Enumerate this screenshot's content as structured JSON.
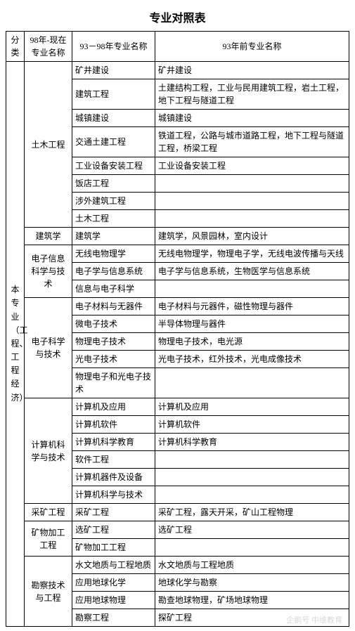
{
  "title": "专业对照表",
  "headers": {
    "category": "分类",
    "now": "98年-现在专业名称",
    "mid": "93－98年专业名称",
    "old": "93年前专业名称"
  },
  "category": "本专业（工程、工程经济）",
  "groups": [
    {
      "now": "土木工程",
      "rows": [
        {
          "mid": "矿井建设",
          "old": "矿井建设"
        },
        {
          "mid": "建筑工程",
          "old": "土建结构工程，工业与民用建筑工程，岩土工程，地下工程与隧道工程"
        },
        {
          "mid": "城镇建设",
          "old": "城镇建设"
        },
        {
          "mid": "交通土建工程",
          "old": "铁道工程，公路与城市道路工程，地下工程与隧道工程，桥梁工程"
        },
        {
          "mid": "工业设备安装工程",
          "old": "工业设备安装工程"
        },
        {
          "mid": "饭店工程",
          "old": ""
        },
        {
          "mid": "涉外建筑工程",
          "old": ""
        },
        {
          "mid": "土木工程",
          "old": ""
        }
      ]
    },
    {
      "now": "建筑学",
      "rows": [
        {
          "mid": "建筑学",
          "old": "建筑学，风景园林，室内设计"
        }
      ]
    },
    {
      "now": "电子信息科学与技术",
      "rows": [
        {
          "mid": "无线电物理学",
          "old": "无线电物理学，物理电子学，无线电波传播与天线"
        },
        {
          "mid": "电子学与信息系统",
          "old": "电子学与信息系统，生物医学与信息系统"
        },
        {
          "mid": "信息与电子科学",
          "old": ""
        }
      ]
    },
    {
      "now": "电子科学与技术",
      "rows": [
        {
          "mid": "电子材料与无器件",
          "old": "电子材料与元器件，磁性物理与器件"
        },
        {
          "mid": "微电子技术",
          "old": "半导体物理与器件"
        },
        {
          "mid": "物理电子技术",
          "old": "物理电子技术，电光源"
        },
        {
          "mid": "光电子技术",
          "old": "光电子技术，红外技术，光电成像技术"
        },
        {
          "mid": "物理电子和光电子技术",
          "old": ""
        }
      ]
    },
    {
      "now": "计算机科学与技术",
      "rows": [
        {
          "mid": "计算机及应用",
          "old": "计算机及应用"
        },
        {
          "mid": "计算机软件",
          "old": "计算机软件"
        },
        {
          "mid": "计算机科学教育",
          "old": "计算机科学教育"
        },
        {
          "mid": "软件工程",
          "old": ""
        },
        {
          "mid": "计算机器件及设备",
          "old": ""
        },
        {
          "mid": "计算机科学与技术",
          "old": ""
        }
      ]
    },
    {
      "now": "采矿工程",
      "rows": [
        {
          "mid": "采矿工程",
          "old": "采矿工程，露天开采，矿山工程物理"
        }
      ]
    },
    {
      "now": "矿物加工工程",
      "rows": [
        {
          "mid": "选矿工程",
          "old": "选矿工程"
        },
        {
          "mid": "矿物加工工程",
          "old": ""
        }
      ]
    },
    {
      "now": "勘察技术与工程",
      "rows": [
        {
          "mid": "水文地质与工程地质",
          "old": "水文地质与工程地质"
        },
        {
          "mid": "应用地球化学",
          "old": "地球化学与勘察"
        },
        {
          "mid": "应用地球物理",
          "old": "勘查地球物理，矿场地球物理"
        },
        {
          "mid": "勘察工程",
          "old": "探矿工程"
        }
      ]
    }
  ],
  "watermark": "企鹅号 中维教育"
}
